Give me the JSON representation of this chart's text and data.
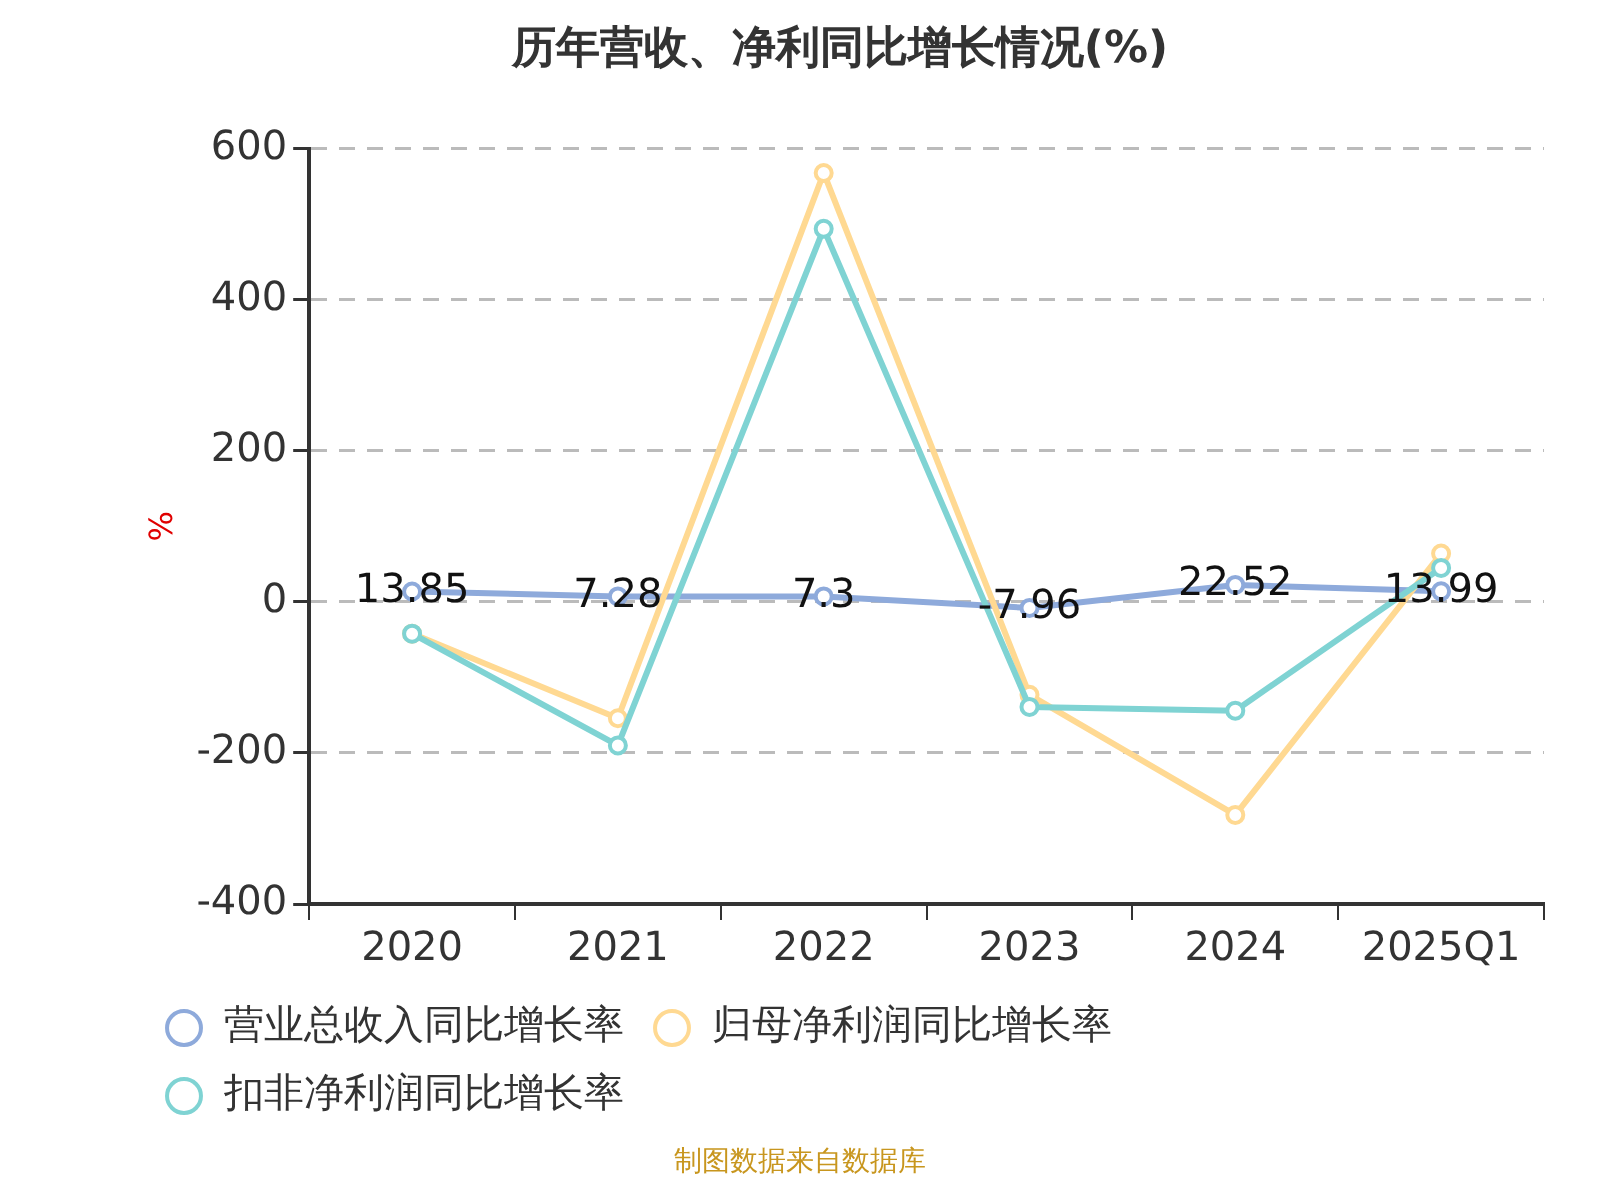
{
  "chart_data": {
    "type": "line",
    "title": "历年营收、净利同比增长情况(%)",
    "ylabel": "%",
    "categories": [
      "2020",
      "2021",
      "2022",
      "2023",
      "2024",
      "2025Q1"
    ],
    "series": [
      {
        "name": "营业总收入同比增长率",
        "color": "#8eaadb",
        "values": [
          13.85,
          7.28,
          7.3,
          -7.96,
          22.52,
          13.99
        ],
        "value_labels": [
          "13.85",
          "7.28",
          "7.3",
          "-7.96",
          "22.52",
          "13.99"
        ]
      },
      {
        "name": "归母净利润同比增长率",
        "color": "#ffd992",
        "values": [
          -42,
          -154,
          568,
          -123,
          -282,
          64
        ]
      },
      {
        "name": "扣非净利润同比增长率",
        "color": "#7fd3d3",
        "values": [
          -42,
          -190,
          494,
          -139,
          -144,
          45
        ]
      }
    ],
    "ylim": [
      -400,
      600
    ],
    "yticks": [
      -400,
      -200,
      0,
      200,
      400,
      600
    ],
    "grid": "y",
    "legend": "bottom",
    "marker": "circle",
    "line_style": "solid",
    "annotations": [
      "制图数据来自数据库"
    ]
  }
}
